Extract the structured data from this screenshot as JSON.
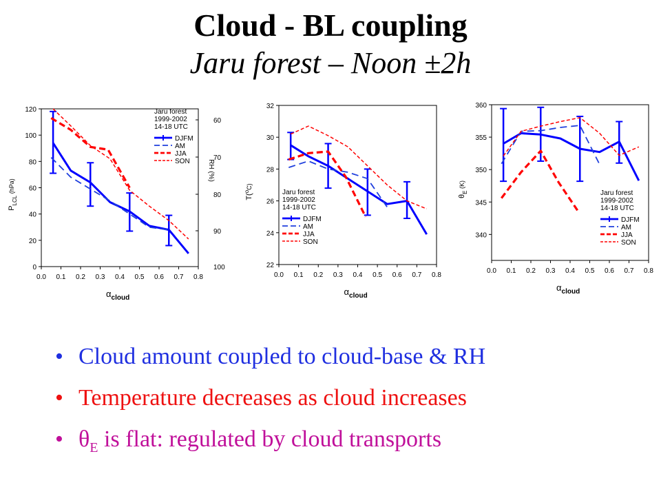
{
  "slide": {
    "title": "Cloud - BL coupling",
    "subtitle": "Jaru forest – Noon ±2h"
  },
  "colors": {
    "djfm": "#0000ff",
    "am": "#1f3fdd",
    "jja": "#ff0000",
    "son": "#ff0000",
    "bullet1": "#1f2fe0",
    "bullet2": "#ee1111",
    "bullet3": "#c0109a"
  },
  "bullets": [
    {
      "text": "Cloud amount coupled to cloud-base & RH",
      "color": "#1f2fe0"
    },
    {
      "text": "Temperature decreases as cloud increases",
      "color": "#ee1111"
    },
    {
      "text_pre": "θ",
      "text_sub": "E",
      "text": " is flat: regulated by cloud transports",
      "color": "#c0109a"
    }
  ],
  "legend": {
    "site": "Jaru forest",
    "years": "1999-2002",
    "hours": "14-18 UTC",
    "entries": [
      "DJFM",
      "AM",
      "JJA",
      "SON"
    ]
  },
  "chart_data": [
    {
      "type": "line",
      "xlabel_symbol": "α",
      "xlabel_sub": "cloud",
      "ylabel_main": "P",
      "ylabel_sub": "LCL",
      "ylabel_unit": " (hPa)",
      "y2label": "RH (%)",
      "xlim": [
        0.0,
        0.8
      ],
      "ylim": [
        0,
        120
      ],
      "xticks": [
        "0.0",
        "0.1",
        "0.2",
        "0.3",
        "0.4",
        "0.5",
        "0.6",
        "0.7",
        "0.8"
      ],
      "yticks": [
        0,
        20,
        40,
        60,
        80,
        100,
        120
      ],
      "y2ticks": [
        60,
        70,
        80,
        90,
        100
      ],
      "legend_position": "top-right",
      "series": [
        {
          "name": "DJFM",
          "style": "solid-thick",
          "x": [
            0.06,
            0.15,
            0.25,
            0.35,
            0.45,
            0.55,
            0.65,
            0.75
          ],
          "y": [
            94,
            73,
            64,
            49,
            42,
            31,
            28,
            10
          ],
          "errorbars": [
            [
              0.06,
              71,
              118
            ],
            [
              0.25,
              46,
              79
            ],
            [
              0.45,
              27,
              56
            ],
            [
              0.65,
              16,
              39
            ]
          ]
        },
        {
          "name": "AM",
          "style": "dash-long",
          "x": [
            0.05,
            0.15,
            0.25,
            0.35,
            0.45,
            0.55,
            0.65
          ],
          "y": [
            83,
            68,
            59,
            50,
            40,
            30,
            28
          ],
          "errorbars": []
        },
        {
          "name": "JJA",
          "style": "dash-thick",
          "x": [
            0.05,
            0.15,
            0.25,
            0.34,
            0.45
          ],
          "y": [
            113,
            104,
            91,
            89,
            60
          ],
          "errorbars": []
        },
        {
          "name": "SON",
          "style": "dash-thin",
          "x": [
            0.06,
            0.15,
            0.25,
            0.35,
            0.45,
            0.55,
            0.65,
            0.75
          ],
          "y": [
            120,
            107,
            92,
            82,
            58,
            46,
            35,
            21
          ],
          "errorbars": []
        }
      ]
    },
    {
      "type": "line",
      "xlabel_symbol": "α",
      "xlabel_sub": "cloud",
      "ylabel_main": "T(",
      "ylabel_sup": "o",
      "ylabel_unit": "C)",
      "xlim": [
        0.0,
        0.8
      ],
      "ylim": [
        22,
        32
      ],
      "xticks": [
        "0.0",
        "0.1",
        "0.2",
        "0.3",
        "0.4",
        "0.5",
        "0.6",
        "0.7",
        "0.8"
      ],
      "yticks": [
        22,
        24,
        26,
        28,
        30,
        32
      ],
      "legend_position": "bottom-left",
      "series": [
        {
          "name": "DJFM",
          "style": "solid-thick",
          "x": [
            0.06,
            0.15,
            0.25,
            0.35,
            0.45,
            0.55,
            0.65,
            0.75
          ],
          "y": [
            29.5,
            28.8,
            28.2,
            27.4,
            26.6,
            25.8,
            26.0,
            23.9
          ],
          "errorbars": [
            [
              0.06,
              28.6,
              30.3
            ],
            [
              0.25,
              26.8,
              29.6
            ],
            [
              0.45,
              25.1,
              28.0
            ],
            [
              0.65,
              24.9,
              27.2
            ]
          ]
        },
        {
          "name": "AM",
          "style": "dash-long",
          "x": [
            0.05,
            0.15,
            0.25,
            0.35,
            0.45,
            0.55
          ],
          "y": [
            28.1,
            28.5,
            28.0,
            27.8,
            27.4,
            25.6
          ],
          "errorbars": []
        },
        {
          "name": "JJA",
          "style": "dash-thick",
          "x": [
            0.05,
            0.15,
            0.25,
            0.34,
            0.44
          ],
          "y": [
            28.6,
            29.0,
            29.1,
            27.5,
            25.0
          ],
          "errorbars": []
        },
        {
          "name": "SON",
          "style": "dash-thin",
          "x": [
            0.06,
            0.15,
            0.25,
            0.35,
            0.45,
            0.55,
            0.65,
            0.75
          ],
          "y": [
            30.2,
            30.7,
            30.1,
            29.4,
            28.2,
            27.0,
            26.0,
            25.5
          ],
          "errorbars": []
        }
      ]
    },
    {
      "type": "line",
      "xlabel_symbol": "α",
      "xlabel_sub": "cloud",
      "ylabel_main": "θ",
      "ylabel_sub": "E",
      "ylabel_unit": " (K)",
      "xlim": [
        0.0,
        0.8
      ],
      "ylim": [
        336,
        360
      ],
      "xticks": [
        "0.0",
        "0.1",
        "0.2",
        "0.3",
        "0.4",
        "0.5",
        "0.6",
        "0.7",
        "0.8"
      ],
      "yticks": [
        340,
        345,
        350,
        355,
        360
      ],
      "legend_position": "bottom-right",
      "series": [
        {
          "name": "DJFM",
          "style": "solid-thick",
          "x": [
            0.06,
            0.15,
            0.25,
            0.35,
            0.45,
            0.55,
            0.65,
            0.75
          ],
          "y": [
            354.0,
            355.6,
            355.4,
            354.8,
            353.2,
            352.7,
            354.3,
            348.3
          ],
          "errorbars": [
            [
              0.06,
              348.2,
              359.4
            ],
            [
              0.25,
              351.3,
              359.6
            ],
            [
              0.45,
              348.2,
              358.2
            ],
            [
              0.65,
              351.0,
              357.4
            ]
          ]
        },
        {
          "name": "AM",
          "style": "dash-long",
          "x": [
            0.05,
            0.15,
            0.25,
            0.35,
            0.45,
            0.55
          ],
          "y": [
            350.9,
            355.9,
            356.0,
            356.5,
            356.8,
            350.8
          ],
          "errorbars": []
        },
        {
          "name": "JJA",
          "style": "dash-thick",
          "x": [
            0.05,
            0.15,
            0.25,
            0.34,
            0.44
          ],
          "y": [
            345.6,
            349.6,
            352.9,
            348.1,
            343.6
          ],
          "errorbars": []
        },
        {
          "name": "SON",
          "style": "dash-thin",
          "x": [
            0.06,
            0.15,
            0.25,
            0.35,
            0.45,
            0.55,
            0.65,
            0.75
          ],
          "y": [
            352.1,
            355.9,
            356.7,
            357.4,
            358.0,
            355.6,
            352.2,
            353.5
          ],
          "errorbars": []
        }
      ]
    }
  ]
}
